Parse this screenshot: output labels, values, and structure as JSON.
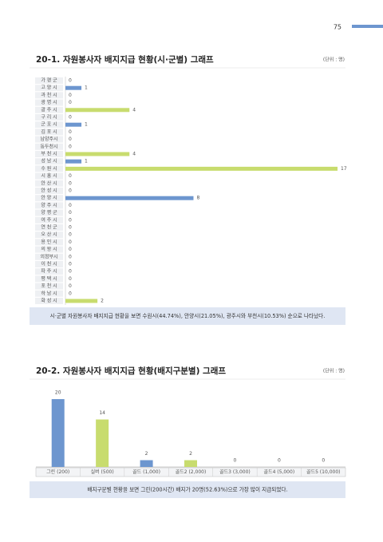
{
  "page_number": "75",
  "chart_data": [
    {
      "type": "barh",
      "title": "20-1. 자원봉사자 배지지급 현황(시·군별) 그래프",
      "unit": "(단위 : 명)",
      "categories": [
        "가 평 군",
        "고 양 시",
        "과 천 시",
        "광 명 시",
        "광 주 시",
        "구 리 시",
        "군 포 시",
        "김 포 시",
        "남양주시",
        "동두천시",
        "부 천 시",
        "성 남 시",
        "수 원 시",
        "시 흥 시",
        "안 산 시",
        "안 성 시",
        "안 양 시",
        "양 주 시",
        "양 평 군",
        "여 주 시",
        "연 천 군",
        "오 산 시",
        "용 인 시",
        "의 왕 시",
        "의정부시",
        "이 천 시",
        "파 주 시",
        "평 택 시",
        "포 천 시",
        "하 남 시",
        "화 성 시"
      ],
      "values": [
        0,
        1,
        0,
        0,
        4,
        0,
        1,
        0,
        0,
        0,
        4,
        1,
        17,
        0,
        0,
        0,
        8,
        0,
        0,
        0,
        0,
        0,
        0,
        0,
        0,
        0,
        0,
        0,
        0,
        0,
        2
      ],
      "colors": [
        "#6d96cf",
        "#6d96cf",
        "#6d96cf",
        "#6d96cf",
        "#c8dc6e",
        "#6d96cf",
        "#6d96cf",
        "#6d96cf",
        "#6d96cf",
        "#6d96cf",
        "#c8dc6e",
        "#6d96cf",
        "#c8dc6e",
        "#6d96cf",
        "#6d96cf",
        "#6d96cf",
        "#6d96cf",
        "#6d96cf",
        "#6d96cf",
        "#6d96cf",
        "#6d96cf",
        "#6d96cf",
        "#6d96cf",
        "#6d96cf",
        "#6d96cf",
        "#6d96cf",
        "#6d96cf",
        "#6d96cf",
        "#6d96cf",
        "#6d96cf",
        "#c8dc6e"
      ],
      "note": "시·군별 자원봉사자 배지지급 현황을 보면 수원시(44.74%), 안양시(21.05%), 광주시와 부천시(10.53%) 순으로 나타났다."
    },
    {
      "type": "bar",
      "title": "20-2. 자원봉사자 배지지급 현황(배지구분별) 그래프",
      "unit": "(단위 : 명)",
      "categories": [
        "그린 (200)",
        "실버 (500)",
        "골드 (1,000)",
        "골드2 (2,000)",
        "골드3 (3,000)",
        "골드4 (5,000)",
        "골드5 (10,000)"
      ],
      "values": [
        20,
        14,
        2,
        2,
        0,
        0,
        0
      ],
      "colors": [
        "#6d96cf",
        "#c8dc6e",
        "#6d96cf",
        "#c8dc6e",
        "#6d96cf",
        "#c8dc6e",
        "#6d96cf"
      ],
      "note": "배지구분별 현황을 보면 그린(200시간) 배지가 20명(52.63%)으로 가장 많이 지급되었다."
    }
  ]
}
